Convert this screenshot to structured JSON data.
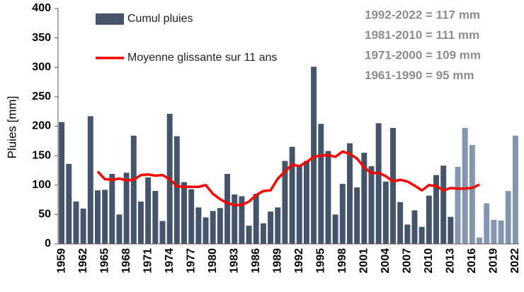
{
  "chart_data": {
    "type": "bar",
    "y_label": "Pluies [mm]",
    "categories": [
      "1959",
      null,
      null,
      "1962",
      null,
      null,
      "1965",
      null,
      null,
      "1968",
      null,
      null,
      "1971",
      null,
      null,
      "1974",
      null,
      null,
      "1977",
      null,
      null,
      "1980",
      null,
      null,
      "1983",
      null,
      null,
      "1986",
      null,
      null,
      "1989",
      null,
      null,
      "1992",
      null,
      null,
      "1995",
      null,
      null,
      "1998",
      null,
      null,
      "2001",
      null,
      null,
      "2004",
      null,
      null,
      "2007",
      null,
      null,
      "2010",
      null,
      null,
      "2013",
      null,
      null,
      "2016",
      null,
      null,
      "2019",
      null,
      null,
      "2022"
    ],
    "series": [
      {
        "name": "Cumul pluies",
        "type": "bar",
        "color": "#44546a",
        "colors": [
          "#44546a",
          "#44546a",
          "#44546a",
          "#44546a",
          "#44546a",
          "#44546a",
          "#44546a",
          "#44546a",
          "#44546a",
          "#44546a",
          "#44546a",
          "#44546a",
          "#44546a",
          "#44546a",
          "#44546a",
          "#44546a",
          "#44546a",
          "#44546a",
          "#44546a",
          "#44546a",
          "#44546a",
          "#44546a",
          "#44546a",
          "#44546a",
          "#44546a",
          "#44546a",
          "#44546a",
          "#44546a",
          "#44546a",
          "#44546a",
          "#44546a",
          "#44546a",
          "#44546a",
          "#44546a",
          "#44546a",
          "#44546a",
          "#44546a",
          "#44546a",
          "#44546a",
          "#44546a",
          "#44546a",
          "#44546a",
          "#44546a",
          "#44546a",
          "#44546a",
          "#44546a",
          "#44546a",
          "#44546a",
          "#44546a",
          "#44546a",
          "#44546a",
          "#44546a",
          "#44546a",
          "#44546a",
          "#44546a",
          "#8496b0",
          "#8496b0",
          "#8496b0",
          "#8496b0",
          "#8496b0",
          "#8496b0",
          "#8496b0",
          "#8496b0",
          "#8496b0"
        ],
        "values": [
          207,
          136,
          72,
          60,
          217,
          91,
          92,
          119,
          50,
          121,
          184,
          72,
          113,
          90,
          39,
          221,
          183,
          105,
          93,
          62,
          45,
          56,
          61,
          119,
          84,
          81,
          31,
          85,
          35,
          55,
          62,
          141,
          165,
          132,
          141,
          301,
          204,
          158,
          50,
          102,
          171,
          96,
          155,
          132,
          205,
          106,
          197,
          71,
          33,
          57,
          29,
          82,
          117,
          133,
          46,
          131,
          197,
          168,
          11,
          69,
          41,
          40,
          90,
          184
        ]
      },
      {
        "name": "Moyenne glissante sur 11 ans",
        "type": "line",
        "color": "#ff0000",
        "values": [
          null,
          null,
          null,
          null,
          null,
          123,
          110,
          109,
          111,
          108,
          109,
          117,
          118,
          116,
          117,
          110,
          98,
          97,
          97,
          97,
          100,
          85,
          76,
          69,
          66,
          66,
          72,
          83,
          90,
          91,
          111,
          123,
          135,
          132,
          139,
          148,
          150,
          151,
          148,
          157,
          153,
          145,
          130,
          120,
          121,
          115,
          106,
          109,
          106,
          99,
          91,
          100,
          98,
          91,
          95,
          94,
          94,
          95,
          101,
          null,
          null,
          null,
          null,
          null
        ]
      }
    ],
    "annotations": [
      "1992-2022 = 117 mm",
      "1981-2010 = 111 mm",
      "1971-2000 = 109 mm",
      "1961-1990 = 95 mm"
    ],
    "ylim": [
      0,
      400
    ],
    "yticks": [
      0,
      50,
      100,
      150,
      200,
      250,
      300,
      350,
      400
    ],
    "grid": false
  }
}
